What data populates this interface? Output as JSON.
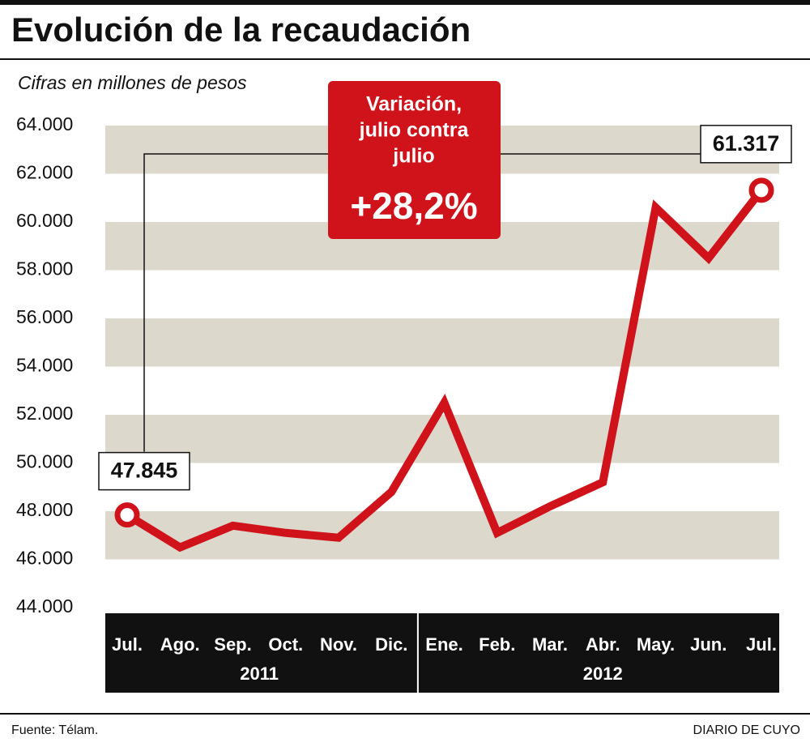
{
  "chart_data": {
    "type": "line",
    "title": "Evolución de la recaudación",
    "subtitle": "Cifras en millones de pesos",
    "categories": [
      "Jul.",
      "Ago.",
      "Sep.",
      "Oct.",
      "Nov.",
      "Dic.",
      "Ene.",
      "Feb.",
      "Mar.",
      "Abr.",
      "May.",
      "Jun.",
      "Jul."
    ],
    "groups": [
      {
        "label": "2011",
        "start": 0,
        "end": 5
      },
      {
        "label": "2012",
        "start": 6,
        "end": 12
      }
    ],
    "values": [
      47845,
      46500,
      47400,
      47100,
      46900,
      48800,
      52500,
      47100,
      48200,
      49200,
      60600,
      58500,
      61317
    ],
    "value_labels": [
      "47.845",
      null,
      null,
      null,
      null,
      null,
      null,
      null,
      null,
      null,
      null,
      null,
      "61.317"
    ],
    "color": "#d0121b",
    "ylim": [
      44000,
      64000
    ],
    "yticks": [
      {
        "value": 44000,
        "label": "44.000"
      },
      {
        "value": 46000,
        "label": "46.000"
      },
      {
        "value": 48000,
        "label": "48.000"
      },
      {
        "value": 50000,
        "label": "50.000"
      },
      {
        "value": 52000,
        "label": "52.000"
      },
      {
        "value": 54000,
        "label": "54.000"
      },
      {
        "value": 56000,
        "label": "56.000"
      },
      {
        "value": 58000,
        "label": "58.000"
      },
      {
        "value": 60000,
        "label": "60.000"
      },
      {
        "value": 62000,
        "label": "62.000"
      },
      {
        "value": 64000,
        "label": "64.000"
      }
    ],
    "grid": "bands",
    "annotation": {
      "text": [
        "Variación,",
        "julio contra",
        "julio"
      ],
      "value": "+28,2%"
    },
    "source": "Fuente: Télam.",
    "credit": "DIARIO DE CUYO"
  }
}
